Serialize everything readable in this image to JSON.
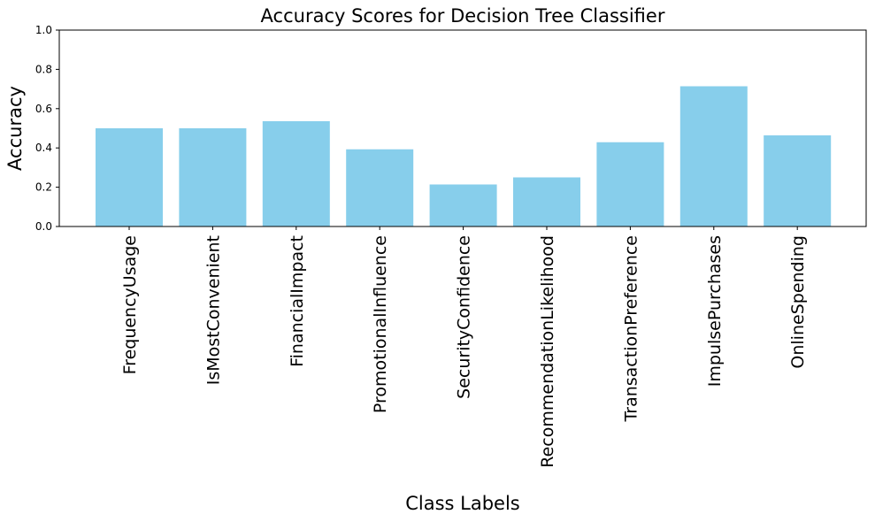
{
  "chart_data": {
    "type": "bar",
    "title": "Accuracy Scores for Decision Tree Classifier",
    "xlabel": "Class Labels",
    "ylabel": "Accuracy",
    "categories": [
      "FrequencyUsage",
      "IsMostConvenient",
      "FinancialImpact",
      "PromotionalInfluence",
      "SecurityConfidence",
      "RecommendationLikelihood",
      "TransactionPreference",
      "ImpulsePurchases",
      "OnlineSpending"
    ],
    "values": [
      0.5,
      0.5,
      0.536,
      0.393,
      0.214,
      0.25,
      0.429,
      0.714,
      0.464
    ],
    "ylim": [
      0,
      1
    ],
    "yticks": [
      "0.0",
      "0.2",
      "0.4",
      "0.6",
      "0.8",
      "1.0"
    ],
    "grid": false,
    "legend": "none",
    "colors": {
      "bar": "#87ceeb",
      "axis": "#000000",
      "background": "#ffffff"
    }
  }
}
